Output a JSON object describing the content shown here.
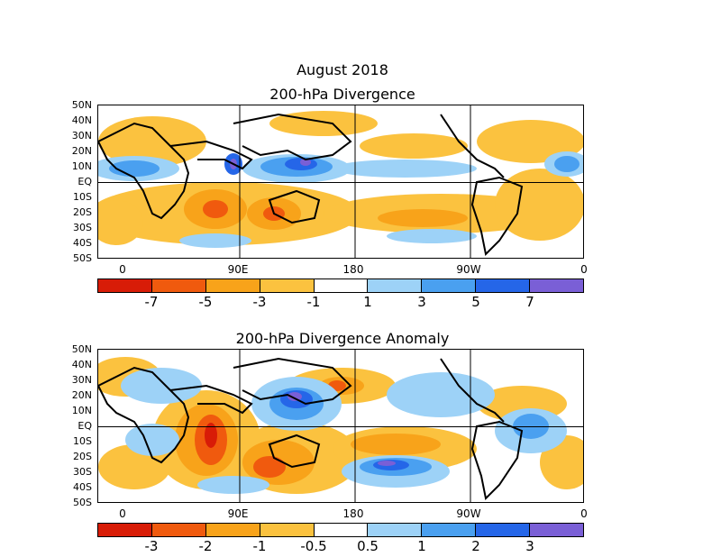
{
  "page": {
    "title": "August 2018"
  },
  "panels": [
    {
      "title": "200-hPa Divergence",
      "lat_labels": [
        "50N",
        "40N",
        "30N",
        "20N",
        "10N",
        "EQ",
        "10S",
        "20S",
        "30S",
        "40S",
        "50S"
      ],
      "lon_labels": [
        "0",
        "90E",
        "180",
        "90W",
        "0"
      ],
      "colorbar": {
        "colors": [
          "#d81c07",
          "#f05a0e",
          "#f8a31a",
          "#fbc23f",
          "#ffffff",
          "#9dd2f7",
          "#4aa0f0",
          "#2566e8",
          "#7a5fd6"
        ],
        "labels": [
          "-7",
          "-5",
          "-3",
          "-1",
          "1",
          "3",
          "5",
          "7"
        ]
      }
    },
    {
      "title": "200-hPa Divergence Anomaly",
      "lat_labels": [
        "50N",
        "40N",
        "30N",
        "20N",
        "10N",
        "EQ",
        "10S",
        "20S",
        "30S",
        "40S",
        "50S"
      ],
      "lon_labels": [
        "0",
        "90E",
        "180",
        "90W",
        "0"
      ],
      "colorbar": {
        "colors": [
          "#d81c07",
          "#f05a0e",
          "#f8a31a",
          "#fbc23f",
          "#ffffff",
          "#9dd2f7",
          "#4aa0f0",
          "#2566e8",
          "#7a5fd6"
        ],
        "labels": [
          "-3",
          "-2",
          "-1",
          "-0.5",
          "0.5",
          "1",
          "2",
          "3"
        ]
      }
    }
  ]
}
